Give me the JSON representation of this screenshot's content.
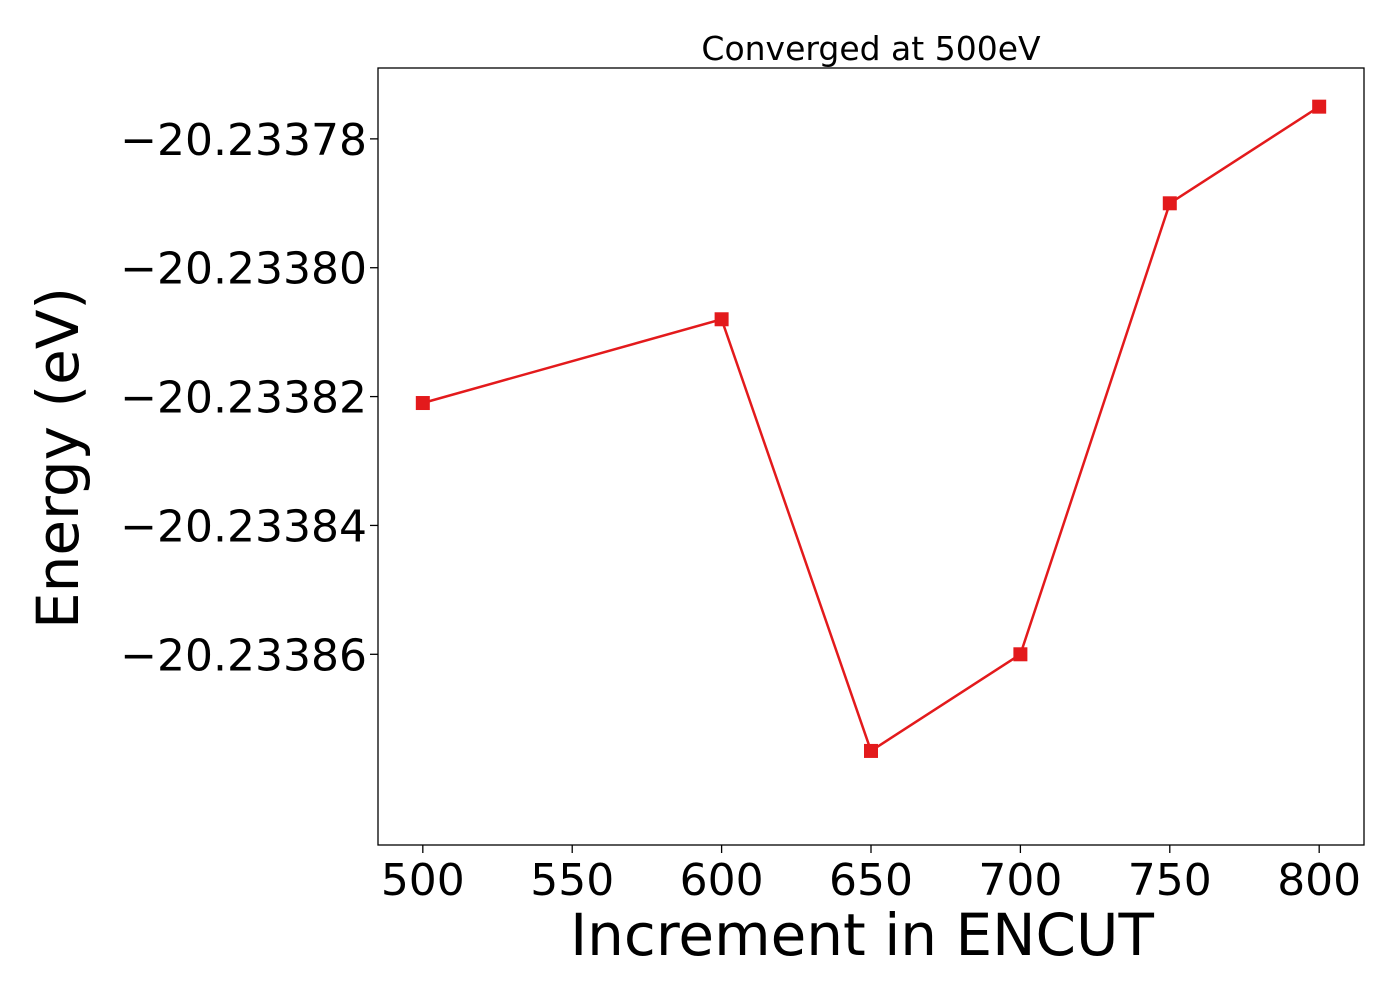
{
  "chart_data": {
    "type": "line",
    "title": "Converged at 500eV",
    "xlabel": "Increment in ENCUT",
    "ylabel": "Energy (eV)",
    "x": [
      500,
      600,
      650,
      700,
      750,
      800
    ],
    "series": [
      {
        "values": [
          -20.233821,
          -20.233808,
          -20.233875,
          -20.23386,
          -20.23379,
          -20.233775
        ],
        "color": "#e31a1c",
        "marker": "square"
      }
    ],
    "xlim": [
      485,
      815
    ],
    "ylim": [
      -20.2338896,
      -20.233769
    ],
    "xticks": [
      500,
      550,
      600,
      650,
      700,
      750,
      800
    ],
    "xtick_labels": [
      "500",
      "550",
      "600",
      "650",
      "700",
      "750",
      "800"
    ],
    "yticks": [
      -20.23378,
      -20.2338,
      -20.23382,
      -20.23384,
      -20.23386
    ],
    "ytick_labels": [
      "−20.23378",
      "−20.23380",
      "−20.23382",
      "−20.23384",
      "−20.23386"
    ],
    "grid": false,
    "legend": "none"
  }
}
